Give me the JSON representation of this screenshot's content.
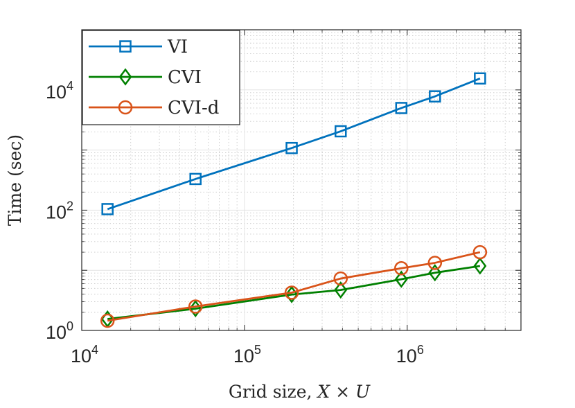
{
  "chart_data": {
    "type": "line",
    "xscale": "log",
    "yscale": "log",
    "xlabel_text": "Grid size, ",
    "xlabel_math": "X × U",
    "ylabel": "Time (sec)",
    "xlim": [
      10000,
      5000000
    ],
    "ylim": [
      1,
      100000
    ],
    "grid": true,
    "legend_position": "top-left",
    "x_ticks": [
      {
        "value": 10000,
        "base": "10",
        "exp": "4"
      },
      {
        "value": 100000,
        "base": "10",
        "exp": "5"
      },
      {
        "value": 1000000,
        "base": "10",
        "exp": "6"
      }
    ],
    "y_ticks": [
      {
        "value": 1,
        "base": "10",
        "exp": "0"
      },
      {
        "value": 100,
        "base": "10",
        "exp": "2"
      },
      {
        "value": 10000,
        "base": "10",
        "exp": "4"
      }
    ],
    "x": [
      14400,
      50000,
      195000,
      390000,
      920000,
      1480000,
      2800000
    ],
    "series": [
      {
        "name": "VI",
        "color": "#0072BD",
        "marker": "square",
        "values": [
          104,
          330,
          1080,
          2050,
          5000,
          7800,
          15500
        ]
      },
      {
        "name": "CVI",
        "color": "#008000",
        "marker": "diamond",
        "values": [
          1.55,
          2.3,
          3.95,
          4.7,
          7.1,
          9.1,
          11.8
        ]
      },
      {
        "name": "CVI-d",
        "color": "#D95319",
        "marker": "circle",
        "values": [
          1.45,
          2.5,
          4.25,
          7.3,
          10.8,
          13.3,
          20.0
        ]
      }
    ]
  }
}
